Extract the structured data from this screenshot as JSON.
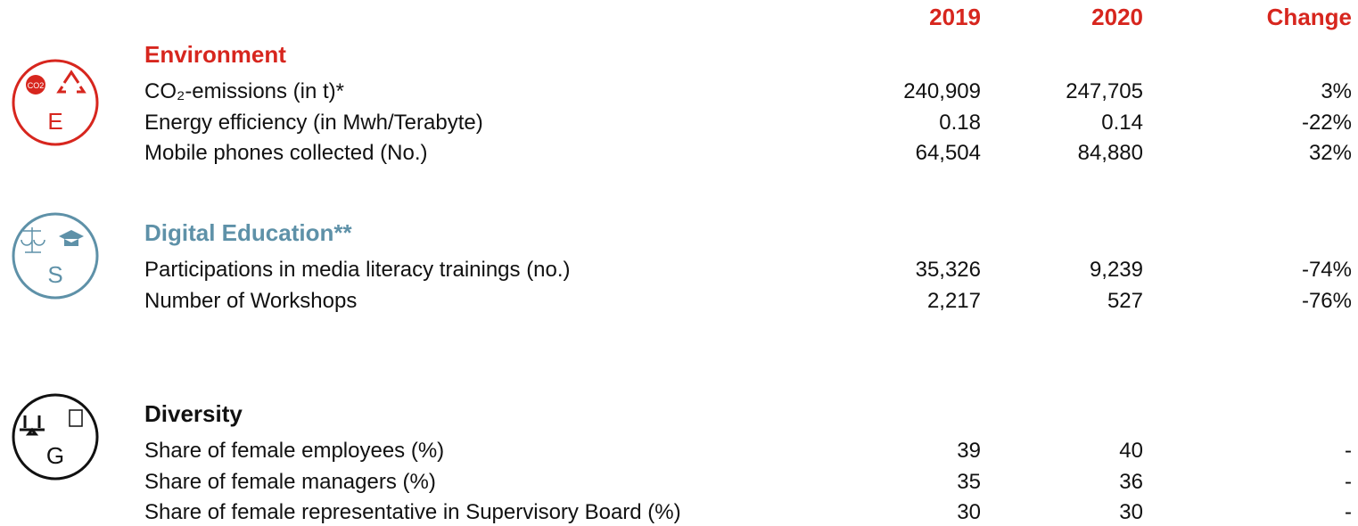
{
  "header": {
    "columns": [
      "2019",
      "2020",
      "Change"
    ]
  },
  "sections": [
    {
      "letter": "E",
      "badge": "CO2",
      "title": "Environment",
      "color": "#d7261e",
      "rows": [
        [
          "CO₂-emissions (in t)*",
          "240,909",
          "247,705",
          "3%"
        ],
        [
          "Energy efficiency (in Mwh/Terabyte)",
          "0.18",
          "0.14",
          "-22%"
        ],
        [
          "Mobile phones collected (No.)",
          "64,504",
          "84,880",
          "32%"
        ]
      ]
    },
    {
      "letter": "S",
      "title": "Digital Education**",
      "color": "#5e91a8",
      "rows": [
        [
          "Participations in media literacy trainings (no.)",
          "35,326",
          "9,239",
          "-74%"
        ],
        [
          "Number of Workshops",
          "2,217",
          "527",
          "-76%"
        ]
      ]
    },
    {
      "letter": "G",
      "title": "Diversity",
      "color": "#111111",
      "rows": [
        [
          "Share of female employees (%)",
          "39",
          "40",
          "-"
        ],
        [
          "Share of female managers (%)",
          "35",
          "36",
          "-"
        ],
        [
          "Share of female representative in Supervisory Board (%)",
          "30",
          "30",
          "-"
        ]
      ]
    }
  ]
}
